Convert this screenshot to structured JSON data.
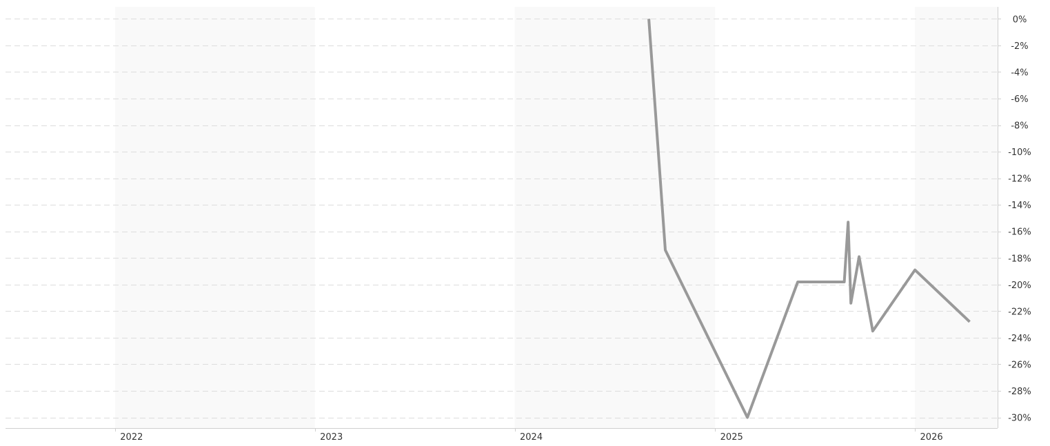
{
  "chart_data": {
    "type": "line",
    "title": "",
    "xlabel": "",
    "ylabel": "",
    "x_ticks": [
      "2022",
      "2023",
      "2024",
      "2025",
      "2026"
    ],
    "y_ticks": [
      0,
      -2,
      -4,
      -6,
      -8,
      -10,
      -12,
      -14,
      -16,
      -18,
      -20,
      -22,
      -24,
      -26,
      -28,
      -30
    ],
    "y_tick_labels": [
      "0%",
      "-2%",
      "-4%",
      "-6%",
      "-8%",
      "-10%",
      "-12%",
      "-14%",
      "-16%",
      "-18%",
      "-20%",
      "-22%",
      "-24%",
      "-26%",
      "-28%",
      "-30%"
    ],
    "xlim": [
      "2021-06-15",
      "2026-06-01"
    ],
    "ylim": [
      -30.8,
      0.9
    ],
    "y_axis_side": "right",
    "grid": "horizontal dashed",
    "year_bands": true,
    "legend": "none",
    "line_color": "#999999",
    "series": [
      {
        "x": [
          "2024-09-02",
          "2024-10-02",
          "2025-03-01",
          "2025-06-01",
          "2025-08-25",
          "2025-09-01",
          "2025-09-06",
          "2025-09-21",
          "2025-10-16",
          "2026-01-01",
          "2026-04-11"
        ],
        "values": [
          0,
          -17.4,
          -30.0,
          -19.8,
          -19.8,
          -15.3,
          -21.4,
          -17.9,
          -23.5,
          -18.9,
          -22.8
        ]
      }
    ]
  }
}
